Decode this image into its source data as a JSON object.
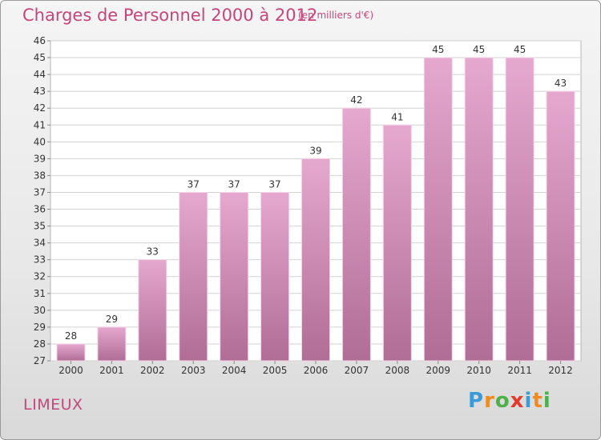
{
  "header": {
    "title": "Charges de Personnel 2000 à 2012",
    "subtitle": "(en milliers d'€)"
  },
  "footer": {
    "commune": "LIMEUX",
    "brand": {
      "letters": [
        "P",
        "r",
        "o",
        "x",
        "i",
        "t",
        "i"
      ],
      "colors": [
        "#3a9bd8",
        "#f18b1e",
        "#4eb04a",
        "#e23b2e",
        "#3a9bd8",
        "#f18b1e",
        "#4eb04a"
      ]
    }
  },
  "colors": {
    "bar_top": "#e5a8cf",
    "bar_bottom": "#b06d96",
    "accent": "#c4467a",
    "grid": "#d2d2d2"
  },
  "chart_data": {
    "type": "bar",
    "categories": [
      "2000",
      "2001",
      "2002",
      "2003",
      "2004",
      "2005",
      "2006",
      "2007",
      "2008",
      "2009",
      "2010",
      "2011",
      "2012"
    ],
    "values": [
      28,
      29,
      33,
      37,
      37,
      37,
      39,
      42,
      41,
      45,
      45,
      45,
      43
    ],
    "ylim": [
      27,
      46
    ],
    "yticks": [
      27,
      28,
      29,
      30,
      31,
      32,
      33,
      34,
      35,
      36,
      37,
      38,
      39,
      40,
      41,
      42,
      43,
      44,
      45,
      46
    ],
    "grid": true,
    "data_labels": true
  }
}
